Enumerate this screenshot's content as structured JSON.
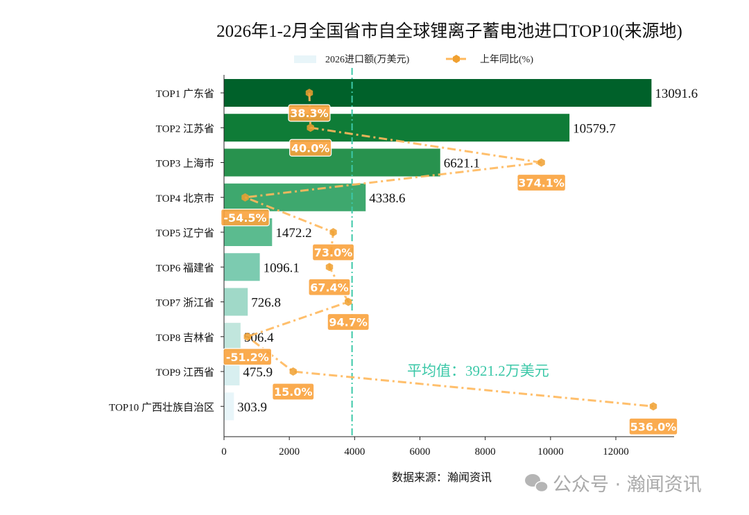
{
  "chart_data": {
    "type": "bar",
    "orientation": "horizontal",
    "title": "2026年1-2月全国省市自全球锂离子蓄电池进口TOP10(来源地)",
    "categories": [
      "TOP1 广东省",
      "TOP2 江苏省",
      "TOP3 上海市",
      "TOP4 北京市",
      "TOP5 辽宁省",
      "TOP6 福建省",
      "TOP7 浙江省",
      "TOP8 吉林省",
      "TOP9 江西省",
      "TOP10 广西壮族自治区"
    ],
    "series": [
      {
        "name": "2026进口额(万美元)",
        "type": "bar",
        "values": [
          13091.6,
          10579.7,
          6621.1,
          4338.6,
          1472.2,
          1096.1,
          726.8,
          506.4,
          475.9,
          303.9
        ],
        "colors": [
          "#00612a",
          "#0f7c37",
          "#28924e",
          "#3ea86e",
          "#5bbb8f",
          "#7ccbb0",
          "#a0d9c8",
          "#c1e6dd",
          "#d8eff0",
          "#e8f5f9"
        ]
      },
      {
        "name": "上年同比(%)",
        "type": "line",
        "values": [
          38.3,
          40.0,
          374.1,
          -54.5,
          73.0,
          67.4,
          94.7,
          -51.2,
          15.0,
          536.0
        ],
        "labels": [
          "38.3%",
          "40.0%",
          "374.1%",
          "-54.5%",
          "73.0%",
          "67.4%",
          "94.7%",
          "-51.2%",
          "15.0%",
          "536.0%"
        ],
        "color": "#f9a23c"
      }
    ],
    "xlim": [
      0,
      13800
    ],
    "xticks": [
      "0",
      "2000",
      "4000",
      "6000",
      "8000",
      "10000",
      "12000"
    ],
    "mean": {
      "value": 3921.2,
      "label": "平均值：3921.2万美元",
      "color": "#3cc8a8"
    },
    "legend_position": "top-center",
    "grid": false
  },
  "source": "数据来源：瀚闻资讯",
  "watermark": "公众号 · 瀚闻资讯"
}
